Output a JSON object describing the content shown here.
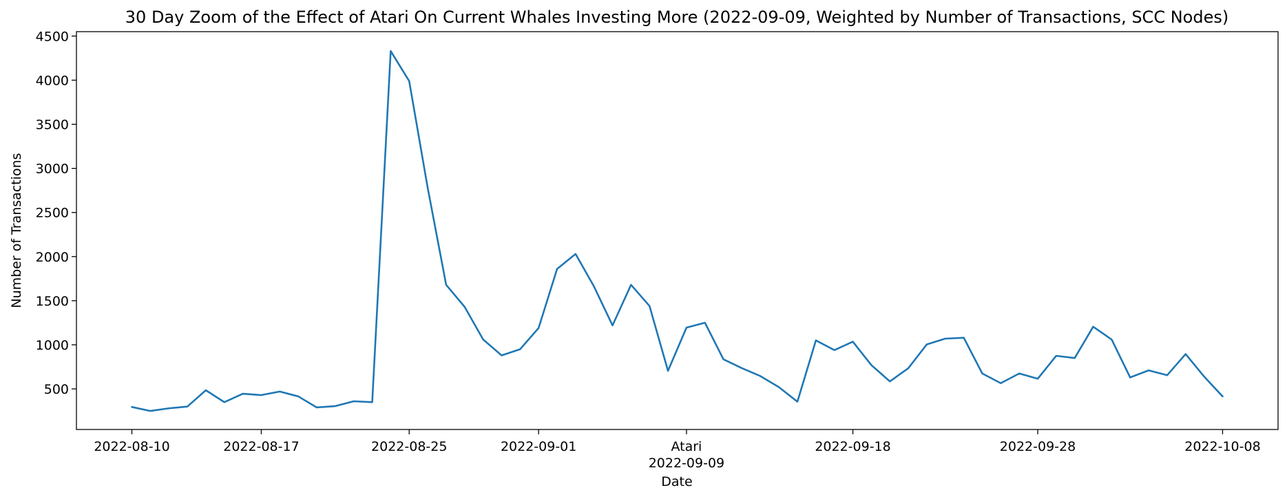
{
  "chart_data": {
    "type": "line",
    "title": "30 Day Zoom of the Effect of Atari On Current Whales Investing More (2022-09-09, Weighted by Number of Transactions, SCC Nodes)",
    "xlabel": "Date",
    "ylabel": "Number of Transactions",
    "xlim": [
      "2022-08-07",
      "2022-10-11"
    ],
    "ylim": [
      40,
      4550
    ],
    "yticks": [
      500,
      1000,
      1500,
      2000,
      2500,
      3000,
      3500,
      4000,
      4500
    ],
    "xticks": [
      {
        "date": "2022-08-10",
        "label": "2022-08-10"
      },
      {
        "date": "2022-08-17",
        "label": "2022-08-17"
      },
      {
        "date": "2022-08-25",
        "label": "2022-08-25"
      },
      {
        "date": "2022-09-01",
        "label": "2022-09-01"
      },
      {
        "date": "2022-09-09",
        "label": "Atari",
        "label2": "2022-09-09"
      },
      {
        "date": "2022-09-18",
        "label": "2022-09-18"
      },
      {
        "date": "2022-09-28",
        "label": "2022-09-28"
      },
      {
        "date": "2022-10-08",
        "label": "2022-10-08"
      }
    ],
    "grid": false,
    "colors": {
      "series": "#1f77b4"
    },
    "series": [
      {
        "x": [
          "2022-08-10",
          "2022-08-11",
          "2022-08-12",
          "2022-08-13",
          "2022-08-14",
          "2022-08-15",
          "2022-08-16",
          "2022-08-17",
          "2022-08-18",
          "2022-08-19",
          "2022-08-20",
          "2022-08-21",
          "2022-08-22",
          "2022-08-23",
          "2022-08-24",
          "2022-08-25",
          "2022-08-26",
          "2022-08-27",
          "2022-08-28",
          "2022-08-29",
          "2022-08-30",
          "2022-08-31",
          "2022-09-01",
          "2022-09-02",
          "2022-09-03",
          "2022-09-04",
          "2022-09-05",
          "2022-09-06",
          "2022-09-07",
          "2022-09-08",
          "2022-09-09",
          "2022-09-10",
          "2022-09-11",
          "2022-09-12",
          "2022-09-13",
          "2022-09-14",
          "2022-09-15",
          "2022-09-16",
          "2022-09-17",
          "2022-09-18",
          "2022-09-19",
          "2022-09-20",
          "2022-09-21",
          "2022-09-22",
          "2022-09-23",
          "2022-09-24",
          "2022-09-25",
          "2022-09-26",
          "2022-09-27",
          "2022-09-28",
          "2022-09-29",
          "2022-09-30",
          "2022-10-01",
          "2022-10-02",
          "2022-10-03",
          "2022-10-04",
          "2022-10-05",
          "2022-10-06",
          "2022-10-07",
          "2022-10-08"
        ],
        "values": [
          295,
          250,
          280,
          300,
          485,
          350,
          445,
          430,
          470,
          415,
          290,
          305,
          360,
          350,
          4330,
          3990,
          2780,
          1680,
          1430,
          1060,
          880,
          950,
          1190,
          1860,
          2030,
          1660,
          1220,
          1680,
          1440,
          705,
          1195,
          1250,
          835,
          735,
          645,
          520,
          355,
          1050,
          940,
          1035,
          770,
          585,
          735,
          1005,
          1070,
          1080,
          675,
          565,
          675,
          615,
          875,
          850,
          1205,
          1060,
          630,
          710,
          655,
          895,
          640,
          415
        ]
      }
    ]
  }
}
